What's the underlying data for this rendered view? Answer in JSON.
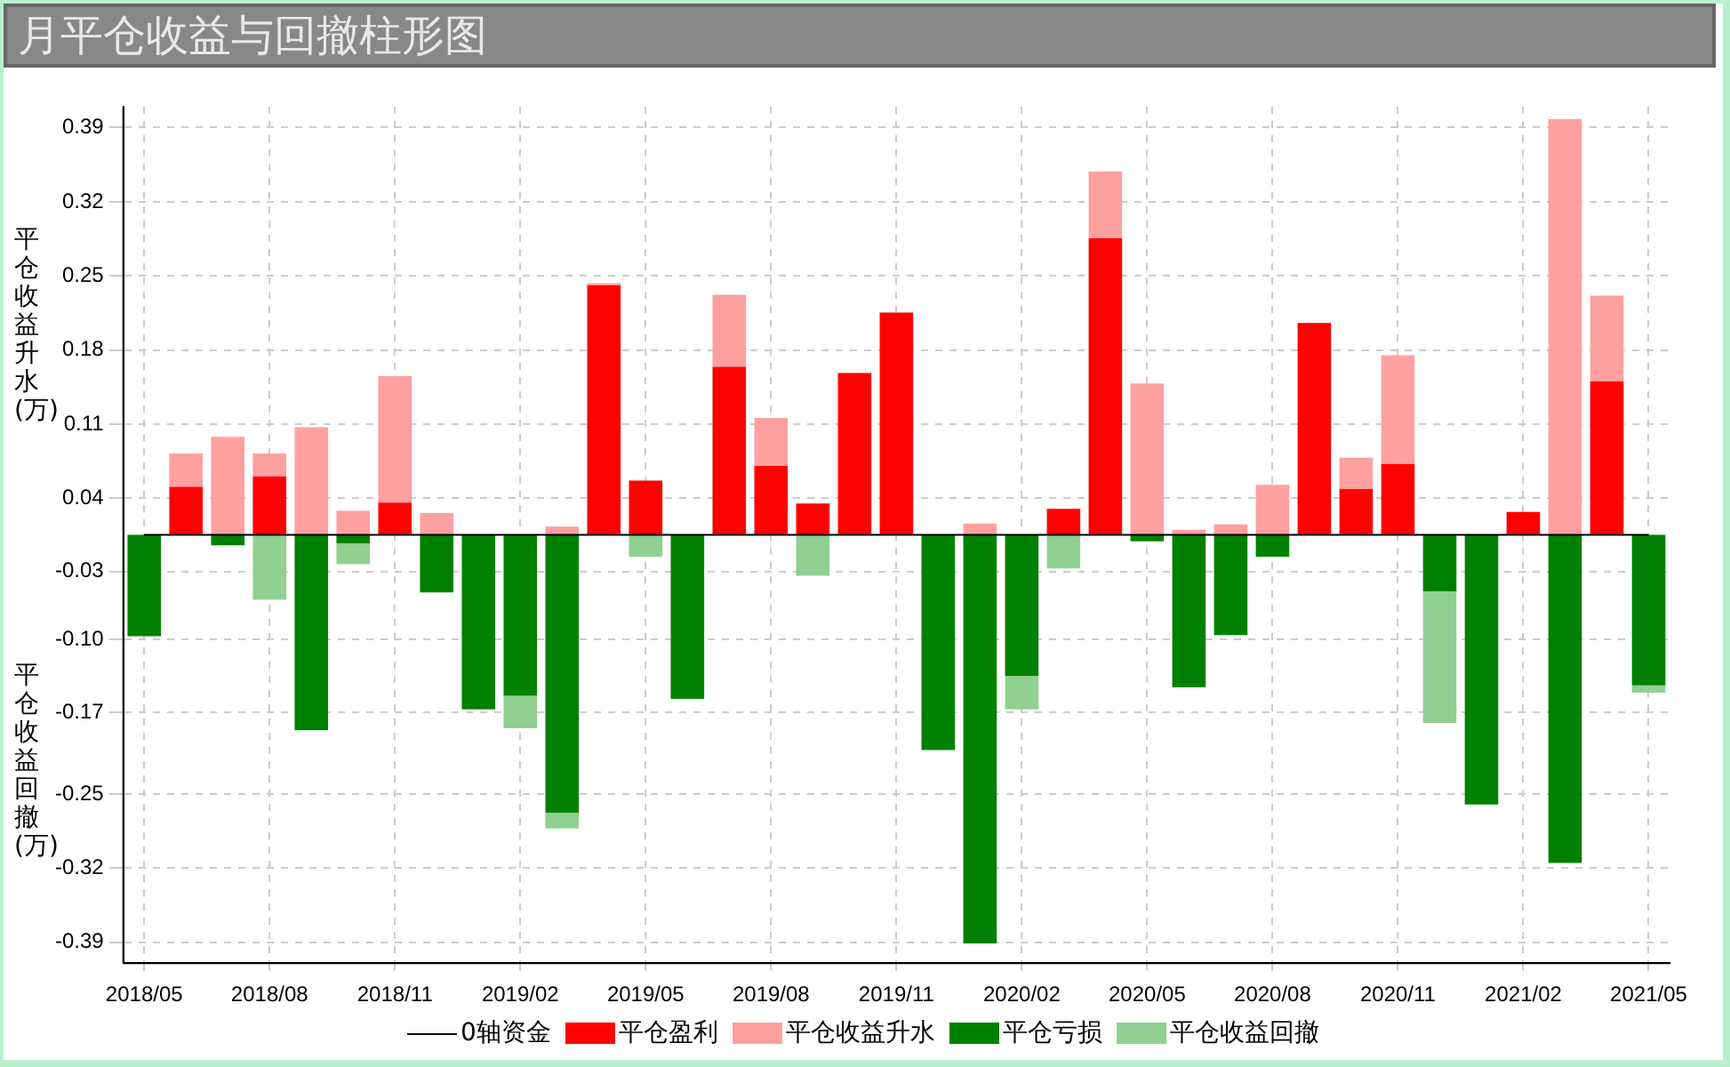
{
  "chart_data": {
    "type": "bar",
    "title": "月平仓收益与回撤柱形图",
    "ylabel": "平仓收益升水(万)",
    "annotations": [
      "平仓收益回撤(万)"
    ],
    "categories": [
      "2018/05",
      null,
      null,
      "2018/08",
      null,
      null,
      "2018/11",
      null,
      null,
      "2019/02",
      null,
      null,
      "2019/05",
      null,
      null,
      "2019/08",
      null,
      null,
      "2019/11",
      null,
      null,
      "2020/02",
      null,
      null,
      "2020/05",
      null,
      null,
      "2020/08",
      null,
      null,
      "2020/11",
      null,
      null,
      "2021/02",
      null,
      null,
      "2021/05"
    ],
    "stacked": true,
    "ylim": [
      -0.41,
      0.41
    ],
    "yticks": [
      {
        "value": -0.39,
        "label": "-0.39"
      },
      {
        "value": -0.319,
        "label": "-0.32"
      },
      {
        "value": -0.248,
        "label": "-0.25"
      },
      {
        "value": -0.17,
        "label": "-0.17"
      },
      {
        "value": -0.1,
        "label": "-0.10"
      },
      {
        "value": -0.035,
        "label": "-0.03"
      },
      {
        "value": 0.035,
        "label": "0.04"
      },
      {
        "value": 0.106,
        "label": "0.11"
      },
      {
        "value": 0.177,
        "label": "0.18"
      },
      {
        "value": 0.248,
        "label": "0.25"
      },
      {
        "value": 0.319,
        "label": "0.32"
      },
      {
        "value": 0.39,
        "label": "0.39"
      }
    ],
    "grid": true,
    "legend": "bottom",
    "series": [
      {
        "name": "0轴资金",
        "type": "line",
        "marker": "none",
        "color": "#000000",
        "values": [
          0,
          0,
          0,
          0,
          0,
          0,
          0,
          0,
          0,
          0,
          0,
          0,
          0,
          0,
          0,
          0,
          0,
          0,
          0,
          0,
          0,
          0,
          0,
          0,
          0,
          0,
          0,
          0,
          0,
          0,
          0,
          0,
          0,
          0,
          0,
          0,
          0
        ]
      },
      {
        "name": "平仓盈利",
        "color": "#ff0000",
        "values": [
          null,
          0.046,
          null,
          0.056,
          null,
          null,
          0.031,
          null,
          null,
          null,
          null,
          0.239,
          0.052,
          null,
          0.161,
          0.066,
          0.03,
          0.155,
          0.213,
          null,
          null,
          null,
          0.025,
          0.284,
          null,
          null,
          null,
          null,
          0.203,
          0.044,
          0.068,
          null,
          null,
          0.022,
          null,
          0.147,
          null
        ]
      },
      {
        "name": "平仓收益升水",
        "color": "#ffa0a0",
        "values": [
          null,
          0.032,
          0.094,
          0.022,
          0.103,
          0.023,
          0.121,
          0.021,
          null,
          null,
          0.008,
          0.002,
          null,
          null,
          0.069,
          0.046,
          null,
          null,
          null,
          null,
          0.011,
          null,
          null,
          0.064,
          0.145,
          0.005,
          0.01,
          0.048,
          null,
          0.03,
          0.104,
          null,
          null,
          null,
          0.398,
          0.082,
          null
        ]
      },
      {
        "name": "平仓亏损",
        "color": "#008000",
        "values": [
          -0.097,
          null,
          -0.01,
          null,
          -0.187,
          -0.008,
          null,
          -0.055,
          -0.167,
          -0.154,
          -0.266,
          null,
          null,
          -0.157,
          null,
          null,
          null,
          null,
          null,
          -0.206,
          -0.391,
          -0.135,
          null,
          null,
          -0.006,
          -0.146,
          -0.096,
          -0.021,
          null,
          null,
          null,
          -0.054,
          -0.258,
          null,
          -0.314,
          null,
          -0.144
        ]
      },
      {
        "name": "平仓收益回撤",
        "color": "#90d090",
        "values": [
          null,
          null,
          null,
          -0.062,
          null,
          -0.02,
          null,
          null,
          null,
          -0.031,
          -0.015,
          null,
          -0.021,
          null,
          null,
          null,
          -0.039,
          null,
          null,
          null,
          null,
          -0.032,
          -0.032,
          null,
          null,
          null,
          null,
          null,
          null,
          null,
          null,
          -0.126,
          null,
          null,
          null,
          null,
          -0.007
        ]
      }
    ]
  }
}
